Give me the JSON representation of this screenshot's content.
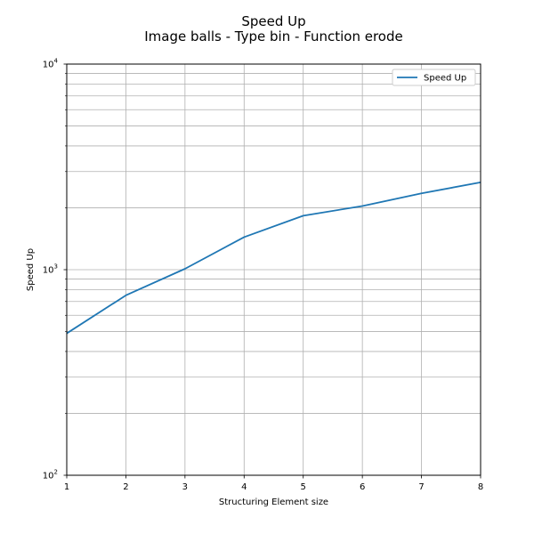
{
  "chart_data": {
    "type": "line",
    "title": "Speed Up",
    "subtitle": "Image balls - Type bin - Function erode",
    "xlabel": "Structuring Element size",
    "ylabel": "Speed Up",
    "x": [
      1,
      2,
      3,
      4,
      5,
      6,
      7,
      8
    ],
    "xlim": [
      1,
      8
    ],
    "ylim": [
      100,
      10000
    ],
    "yscale": "log",
    "x_ticks": [
      "1",
      "2",
      "3",
      "4",
      "5",
      "6",
      "7",
      "8"
    ],
    "y_ticks": [
      {
        "base": "10",
        "exp": "2",
        "value": 100
      },
      {
        "base": "10",
        "exp": "3",
        "value": 1000
      },
      {
        "base": "10",
        "exp": "4",
        "value": 10000
      }
    ],
    "grid": true,
    "legend": {
      "position": "top-right"
    },
    "series": [
      {
        "name": "Speed Up",
        "color": "#1f77b4",
        "values": [
          490,
          750,
          1010,
          1440,
          1830,
          2040,
          2350,
          2660
        ]
      }
    ]
  }
}
